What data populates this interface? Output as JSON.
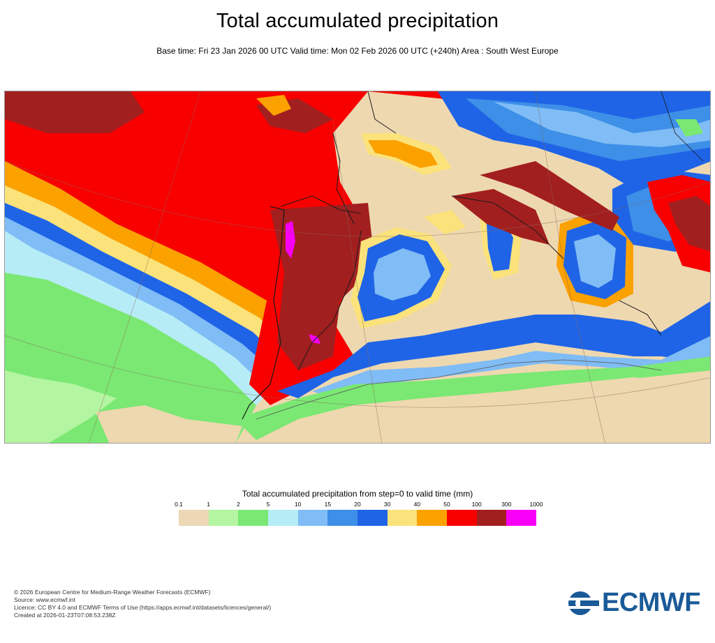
{
  "title": "Total accumulated precipitation",
  "subtitle": "Base time: Fri 23 Jan 2026 00 UTC Valid time: Mon 02 Feb 2026 00 UTC (+240h) Area : South West Europe",
  "legend": {
    "title": "Total accumulated precipitation from step=0 to valid time (mm)",
    "ticks": [
      "0.1",
      "1",
      "2",
      "5",
      "10",
      "15",
      "20",
      "30",
      "40",
      "50",
      "100",
      "300",
      "1000"
    ],
    "colors": [
      "#edd8b6",
      "#b3f5a0",
      "#7ae873",
      "#b6ecf6",
      "#80bcf5",
      "#3d8fe8",
      "#1f64e6",
      "#fbe27b",
      "#fba100",
      "#f80000",
      "#a21f1f",
      "#f800f8"
    ]
  },
  "footer": {
    "line1": "© 2026 European Centre for Medium-Range Weather Forecasts (ECMWF)",
    "line2": "Source: www.ecmwf.int",
    "line3": "Licence: CC BY 4.0 and ECMWF Terms of Use (https://apps.ecmwf.int/datasets/licences/general/)",
    "line4": "Created at 2026-01-23T07:08:53.238Z"
  },
  "logo": {
    "text": "ECMWF",
    "color": "#1a5a98"
  }
}
